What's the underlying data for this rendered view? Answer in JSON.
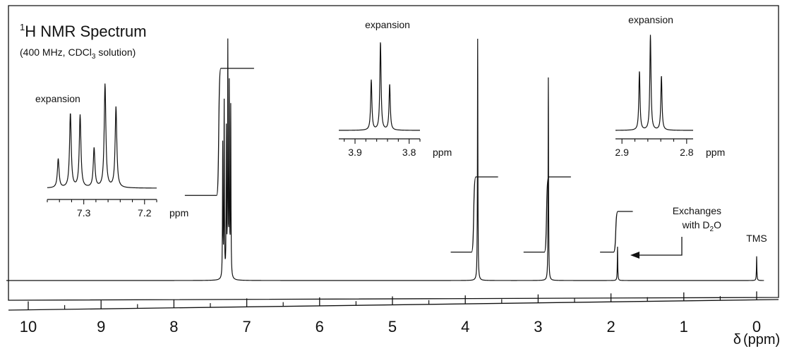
{
  "chart_data": {
    "type": "line",
    "title": "H NMR Spectrum",
    "title_superscript": "1",
    "subtitle_pre": "(400 MHz, CDCl",
    "subtitle_sub": "3",
    "subtitle_post": " solution)",
    "x_axis": {
      "label_symbol": "δ",
      "label_unit": "(ppm)",
      "range": [
        10,
        0
      ],
      "reversed": true,
      "major_ticks": [
        "10",
        "9",
        "8",
        "7",
        "6",
        "5",
        "4",
        "3",
        "2",
        "1",
        "0"
      ],
      "minor_tick_step": 0.5
    },
    "grid": false,
    "legend": "none",
    "peaks": [
      {
        "delta": 7.33,
        "height": 0.55
      },
      {
        "delta": 7.31,
        "height": 0.72
      },
      {
        "delta": 7.28,
        "height": 0.6
      },
      {
        "delta": 7.26,
        "height": 0.95
      },
      {
        "delta": 7.24,
        "height": 0.78
      },
      {
        "delta": 7.22,
        "height": 0.7
      },
      {
        "delta": 3.83,
        "height": 1.0
      },
      {
        "delta": 2.86,
        "height": 0.84
      },
      {
        "delta": 1.91,
        "height": 0.14
      },
      {
        "delta": 0.0,
        "height": 0.1
      }
    ],
    "integrals": [
      {
        "from": 7.85,
        "to": 6.9,
        "start_level": 0.345,
        "end_level": 0.86
      },
      {
        "from": 4.2,
        "to": 3.55,
        "start_level": 0.115,
        "end_level": 0.42
      },
      {
        "from": 3.2,
        "to": 2.55,
        "start_level": 0.115,
        "end_level": 0.42
      },
      {
        "from": 2.15,
        "to": 1.7,
        "start_level": 0.115,
        "end_level": 0.28
      }
    ],
    "annotations": {
      "tms": "TMS",
      "exchange_line1": "Exchanges",
      "exchange_line2_pre": "with D",
      "exchange_line2_sub": "2",
      "exchange_line2_post": "O"
    },
    "expansions": [
      {
        "label": "expansion",
        "axis_unit": "ppm",
        "range": [
          7.36,
          7.18
        ],
        "tick_labels": [
          {
            "value": 7.3,
            "text": "7.3"
          },
          {
            "value": 7.2,
            "text": "7.2"
          }
        ],
        "peaks": [
          {
            "delta": 7.342,
            "height": 0.28
          },
          {
            "delta": 7.322,
            "height": 0.72
          },
          {
            "delta": 7.306,
            "height": 0.7
          },
          {
            "delta": 7.283,
            "height": 0.38
          },
          {
            "delta": 7.265,
            "height": 1.0
          },
          {
            "delta": 7.247,
            "height": 0.78
          }
        ]
      },
      {
        "label": "expansion",
        "axis_unit": "ppm",
        "range": [
          3.93,
          3.78
        ],
        "tick_labels": [
          {
            "value": 3.9,
            "text": "3.9"
          },
          {
            "value": 3.8,
            "text": "3.8"
          }
        ],
        "peaks": [
          {
            "delta": 3.87,
            "height": 0.57
          },
          {
            "delta": 3.853,
            "height": 1.0
          },
          {
            "delta": 3.836,
            "height": 0.52
          }
        ]
      },
      {
        "label": "expansion",
        "axis_unit": "ppm",
        "range": [
          2.91,
          2.79
        ],
        "tick_labels": [
          {
            "value": 2.9,
            "text": "2.9"
          },
          {
            "value": 2.8,
            "text": "2.8"
          }
        ],
        "peaks": [
          {
            "delta": 2.873,
            "height": 0.62
          },
          {
            "delta": 2.856,
            "height": 1.0
          },
          {
            "delta": 2.839,
            "height": 0.57
          }
        ]
      }
    ]
  }
}
